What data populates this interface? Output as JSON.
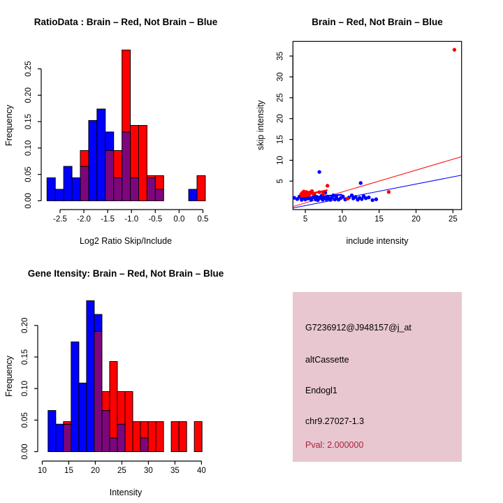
{
  "colors": {
    "red": "#ff0000",
    "blue": "#0000ff",
    "overlap": "#7d067d",
    "axis": "#000000",
    "info_box_bg": "#e8c7d1",
    "pval_color": "#aa2238"
  },
  "chart_data": [
    {
      "type": "bar",
      "variant": "overlaid_histogram",
      "title": "RatioData : Brain – Red, Not Brain – Blue",
      "xlabel": "Log2 Ratio Skip/Include",
      "ylabel": "Frequency",
      "legend": "none",
      "grid": false,
      "bin_start": -2.774,
      "bin_width": 0.175,
      "xlim": [
        -2.91,
        0.684
      ],
      "ylim": [
        -0.0114,
        0.2971
      ],
      "xticks": [
        -2.5,
        -2,
        -1.5,
        -1,
        -0.5,
        0,
        0.5
      ],
      "xtick_labels": [
        "-2.5",
        "-2.0",
        "-1.5",
        "-1.0",
        "-0.5",
        "0.0",
        "0.5"
      ],
      "yticks": [
        0,
        0.05,
        0.1,
        0.15,
        0.2,
        0.25
      ],
      "ytick_labels": [
        "0.00",
        "0.05",
        "0.10",
        "0.15",
        "0.20",
        "0.25"
      ],
      "series": [
        {
          "name": "Not Brain (blue)",
          "color_key": "blue",
          "values": [
            0.0435,
            0.0217,
            0.0652,
            0.0435,
            0.0652,
            0.1522,
            0.1739,
            0.1304,
            0.0435,
            0.1304,
            0.0435,
            0,
            0.0435,
            0.0217,
            0,
            0,
            0,
            0.0217,
            0
          ]
        },
        {
          "name": "Brain (red)",
          "color_key": "red",
          "values": [
            0,
            0,
            0,
            0,
            0.0952,
            0,
            0,
            0.0952,
            0.0952,
            0.2857,
            0.1428,
            0.1428,
            0.0476,
            0.0476,
            0,
            0,
            0,
            0,
            0.0476
          ]
        }
      ]
    },
    {
      "type": "scatter",
      "title": "Brain – Red, Not Brain – Blue",
      "xlabel": "include intensity",
      "ylabel": "skip intensity",
      "legend": "none",
      "grid": false,
      "box": true,
      "xlim": [
        3.32,
        26.17
      ],
      "ylim": [
        -1.82,
        38.5
      ],
      "xticks": [
        5,
        10,
        15,
        20,
        25
      ],
      "xtick_labels": [
        "5",
        "10",
        "15",
        "20",
        "25"
      ],
      "yticks": [
        5,
        10,
        15,
        20,
        25,
        30,
        35
      ],
      "ytick_labels": [
        "5",
        "10",
        "15",
        "20",
        "25",
        "30",
        "35"
      ],
      "series": [
        {
          "name": "Brain",
          "color_key": "red"
        },
        {
          "name": "Not Brain",
          "color_key": "blue"
        }
      ],
      "points": {
        "red": [
          [
            25.2,
            36.5
          ],
          [
            16.3,
            2.4
          ],
          [
            10.7,
            0.8
          ],
          [
            8.0,
            3.9
          ],
          [
            6.9,
            2.35
          ],
          [
            5.9,
            2.6
          ],
          [
            4.45,
            1.9
          ],
          [
            4.55,
            1.25
          ],
          [
            4.6,
            2.2
          ],
          [
            4.7,
            1.55
          ],
          [
            4.8,
            2.5
          ],
          [
            4.9,
            1.85
          ],
          [
            5.0,
            2.1
          ],
          [
            5.05,
            1.45
          ],
          [
            5.15,
            2.4
          ],
          [
            5.25,
            1.75
          ],
          [
            5.35,
            2.05
          ],
          [
            5.5,
            1.65
          ],
          [
            5.6,
            2.3
          ],
          [
            6.1,
            1.95
          ],
          [
            7.4,
            2.0
          ]
        ],
        "blue": [
          [
            3.5,
            1.0
          ],
          [
            3.9,
            0.7
          ],
          [
            4.2,
            1.3
          ],
          [
            4.5,
            0.5
          ],
          [
            4.8,
            1.15
          ],
          [
            5.0,
            0.6
          ],
          [
            5.2,
            1.45
          ],
          [
            5.4,
            0.85
          ],
          [
            5.6,
            2.05
          ],
          [
            5.8,
            0.5
          ],
          [
            6.0,
            1.1
          ],
          [
            6.2,
            1.8
          ],
          [
            6.4,
            0.6
          ],
          [
            6.55,
            1.25
          ],
          [
            6.7,
            0.45
          ],
          [
            6.9,
            7.2
          ],
          [
            7.0,
            0.95
          ],
          [
            7.2,
            1.5
          ],
          [
            7.35,
            0.55
          ],
          [
            7.5,
            1.1
          ],
          [
            7.7,
            2.2
          ],
          [
            7.85,
            0.65
          ],
          [
            8.0,
            1.3
          ],
          [
            8.2,
            0.8
          ],
          [
            8.4,
            0.5
          ],
          [
            8.6,
            1.05
          ],
          [
            8.8,
            1.6
          ],
          [
            9.0,
            0.6
          ],
          [
            9.2,
            1.15
          ],
          [
            9.5,
            0.55
          ],
          [
            9.8,
            0.95
          ],
          [
            10.1,
            1.3
          ],
          [
            10.4,
            0.6
          ],
          [
            10.9,
            1.05
          ],
          [
            11.3,
            1.6
          ],
          [
            11.5,
            0.85
          ],
          [
            11.8,
            1.2
          ],
          [
            12.1,
            0.55
          ],
          [
            12.35,
            1.0
          ],
          [
            12.5,
            4.55
          ],
          [
            12.65,
            0.7
          ],
          [
            12.9,
            1.4
          ],
          [
            13.2,
            0.9
          ],
          [
            13.6,
            1.1
          ],
          [
            14.1,
            0.45
          ],
          [
            14.6,
            0.65
          ]
        ]
      },
      "lines": [
        {
          "name": "brain-fit-line",
          "color_key": "red",
          "width": 1,
          "points": [
            [
              3.32,
              -1.1
            ],
            [
              26.17,
              10.87
            ]
          ]
        },
        {
          "name": "notbrain-fit-line",
          "color_key": "blue",
          "width": 1,
          "points": [
            [
              3.32,
              -1.45
            ],
            [
              26.17,
              6.43
            ]
          ]
        },
        {
          "name": "brain-lowess",
          "color_key": "red",
          "width": 2.5,
          "points": [
            [
              4.3,
              1.55
            ],
            [
              5.2,
              1.85
            ],
            [
              6.2,
              2.2
            ],
            [
              7.3,
              2.55
            ],
            [
              8.0,
              2.85
            ]
          ]
        },
        {
          "name": "notbrain-lowess",
          "color_key": "blue",
          "width": 2.5,
          "points": [
            [
              4.2,
              0.8
            ],
            [
              5.5,
              1.05
            ],
            [
              7.0,
              1.3
            ],
            [
              8.6,
              1.55
            ],
            [
              10.0,
              1.75
            ]
          ]
        }
      ]
    },
    {
      "type": "bar",
      "variant": "overlaid_histogram",
      "title": "Gene Itensity: Brain – Red, Not Brain – Blue",
      "xlabel": "Intensity",
      "ylabel": "Frequency",
      "legend": "none",
      "grid": false,
      "bin_start": 11.1,
      "bin_width": 1.45,
      "xlim": [
        9.94,
        41.26
      ],
      "ylim": [
        -0.0105,
        0.2496
      ],
      "xticks": [
        10,
        15,
        20,
        25,
        30,
        35,
        40
      ],
      "xtick_labels": [
        "10",
        "15",
        "20",
        "25",
        "30",
        "35",
        "40"
      ],
      "yticks": [
        0,
        0.05,
        0.1,
        0.15,
        0.2
      ],
      "ytick_labels": [
        "0.00",
        "0.05",
        "0.10",
        "0.15",
        "0.20"
      ],
      "series": [
        {
          "name": "Not Brain (blue)",
          "color_key": "blue",
          "values": [
            0.0652,
            0.0435,
            0.0435,
            0.1739,
            0.1087,
            0.2391,
            0.2174,
            0.0652,
            0.0217,
            0.0435,
            0,
            0,
            0.0217,
            0,
            0,
            0,
            0,
            0,
            0,
            0
          ]
        },
        {
          "name": "Brain (red)",
          "color_key": "red",
          "values": [
            0,
            0,
            0.0476,
            0,
            0,
            0,
            0.1905,
            0.0952,
            0.1428,
            0.0952,
            0.0952,
            0.0476,
            0.0476,
            0.0476,
            0.0476,
            0,
            0.0476,
            0.0476,
            0,
            0.0476
          ]
        }
      ]
    }
  ],
  "info_box": {
    "probe_id": "G7236912@J948157@j_at",
    "splice_type": "altCassette",
    "gene": "Endogl1",
    "locus": "chr9.27027-1.3",
    "pval": "Pval: 2.000000"
  }
}
